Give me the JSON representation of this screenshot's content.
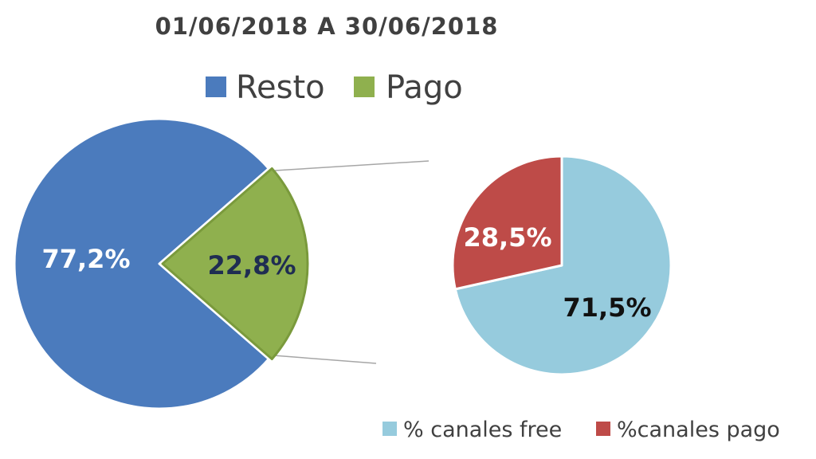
{
  "chart_data": [
    {
      "type": "pie",
      "title": "01/06/2018 A 30/06/2018",
      "legend_position": "top",
      "categories": [
        "Resto",
        "Pago"
      ],
      "values": [
        77.2,
        22.8
      ],
      "data_labels": [
        "77,2%",
        "22,8%"
      ],
      "colors": [
        "#4b7bbd",
        "#8fb04e"
      ],
      "label_colors": [
        "#ffffff",
        "#1f2d52"
      ],
      "exploded": "Pago"
    },
    {
      "type": "pie",
      "legend_position": "bottom",
      "categories": [
        "% canales free",
        "%canales pago"
      ],
      "values": [
        71.5,
        28.5
      ],
      "data_labels": [
        "71,5%",
        "28,5%"
      ],
      "colors": [
        "#96cbdd",
        "#be4b48"
      ],
      "label_colors": [
        "#111111",
        "#ffffff"
      ]
    }
  ]
}
